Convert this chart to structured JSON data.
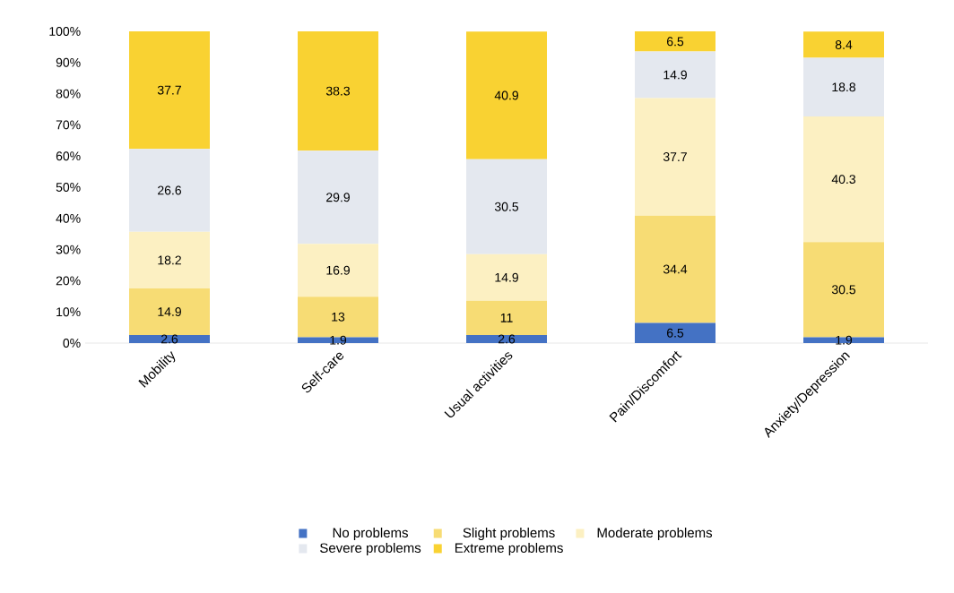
{
  "chart_data": {
    "type": "bar",
    "stacked": true,
    "data_labels": true,
    "legend": "bottom",
    "categories": [
      "Mobility",
      "Self-care",
      "Usual activities",
      "Pain/Discomfort",
      "Anxiety/Depression"
    ],
    "series": [
      {
        "name": "No problems",
        "color": "#4472c4",
        "values": [
          2.6,
          1.9,
          2.6,
          6.5,
          1.9
        ]
      },
      {
        "name": "Slight problems",
        "color": "#f7dc74",
        "values": [
          14.9,
          13,
          11,
          34.4,
          30.5
        ]
      },
      {
        "name": "Moderate problems",
        "color": "#fcf0c2",
        "values": [
          18.2,
          16.9,
          14.9,
          37.7,
          40.3
        ]
      },
      {
        "name": "Severe problems",
        "color": "#e4e8ef",
        "values": [
          26.6,
          29.9,
          30.5,
          14.9,
          18.8
        ]
      },
      {
        "name": "Extreme problems",
        "color": "#f9d232",
        "values": [
          37.7,
          38.3,
          40.9,
          6.5,
          8.4
        ]
      }
    ],
    "ylim": [
      0,
      100
    ],
    "yticks": [
      {
        "value": 0,
        "label": "0%"
      },
      {
        "value": 10,
        "label": "10%"
      },
      {
        "value": 20,
        "label": "20%"
      },
      {
        "value": 30,
        "label": "30%"
      },
      {
        "value": 40,
        "label": "40%"
      },
      {
        "value": 50,
        "label": "50%"
      },
      {
        "value": 60,
        "label": "60%"
      },
      {
        "value": 70,
        "label": "70%"
      },
      {
        "value": 80,
        "label": "80%"
      },
      {
        "value": 90,
        "label": "90%"
      },
      {
        "value": 100,
        "label": "100%"
      }
    ]
  }
}
